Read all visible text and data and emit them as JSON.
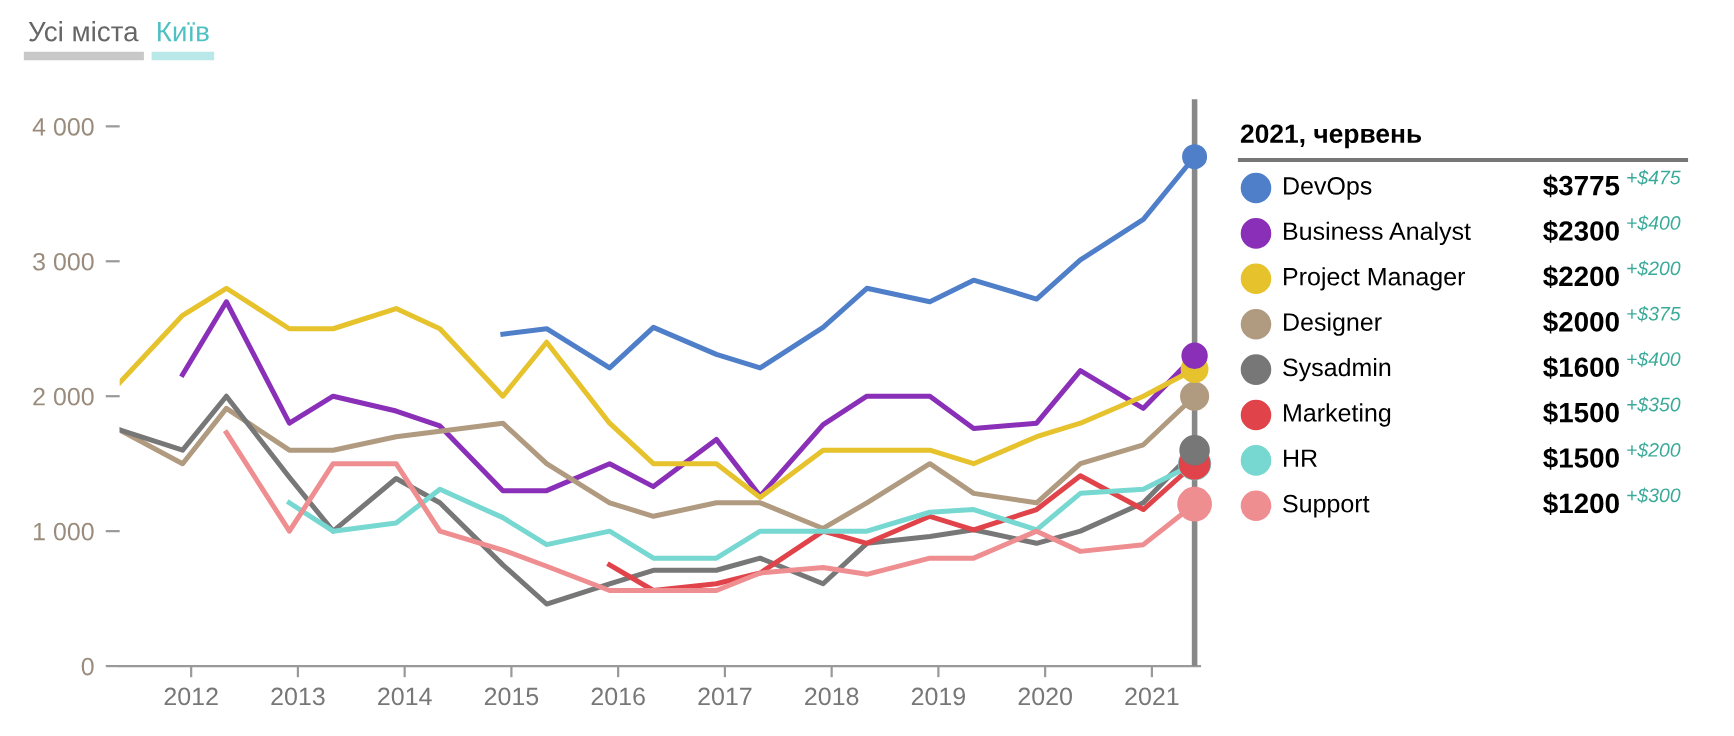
{
  "chart_data": {
    "type": "line",
    "x": [
      2011.33,
      2011.92,
      2012.33,
      2012.92,
      2013.33,
      2013.92,
      2014.33,
      2014.92,
      2015.33,
      2015.92,
      2016.33,
      2016.92,
      2017.33,
      2017.92,
      2018.33,
      2018.92,
      2019.33,
      2019.92,
      2020.33,
      2020.92,
      2021.4
    ],
    "xlim": [
      2011.33,
      2021.45
    ],
    "xticks": [
      2012,
      2013,
      2014,
      2015,
      2016,
      2017,
      2018,
      2019,
      2020,
      2021
    ],
    "ylim": [
      0,
      4200
    ],
    "yticks": [
      {
        "value": 0,
        "label": "0"
      },
      {
        "value": 1000,
        "label": "1 000"
      },
      {
        "value": 2000,
        "label": "2 000"
      },
      {
        "value": 3000,
        "label": "3 000"
      },
      {
        "value": 4000,
        "label": "4 000"
      }
    ],
    "grid": false,
    "legend": "right",
    "legend_title": "2021, червень",
    "line_style": "solid",
    "series": [
      {
        "name": "DevOps",
        "color": "#4f7fc9",
        "values": [
          null,
          null,
          null,
          null,
          null,
          null,
          null,
          2460,
          2500,
          2210,
          2510,
          2310,
          2210,
          2510,
          2800,
          2700,
          2860,
          2720,
          3010,
          3310,
          3775
        ]
      },
      {
        "name": "Business Analyst",
        "color": "#8a2fb8",
        "values": [
          null,
          2160,
          2700,
          1800,
          2000,
          1890,
          1780,
          1300,
          1300,
          1500,
          1330,
          1680,
          1260,
          1790,
          2000,
          2000,
          1760,
          1800,
          2190,
          1910,
          2300
        ]
      },
      {
        "name": "Project Manager",
        "color": "#e6c22d",
        "values": [
          2100,
          2600,
          2800,
          2500,
          2500,
          2650,
          2500,
          2000,
          2400,
          1800,
          1500,
          1500,
          1250,
          1600,
          1600,
          1600,
          1500,
          1700,
          1800,
          2000,
          2200
        ]
      },
      {
        "name": "Designer",
        "color": "#b09a80",
        "values": [
          1750,
          1500,
          1910,
          1600,
          1600,
          1700,
          1740,
          1800,
          1500,
          1210,
          1110,
          1210,
          1210,
          1020,
          1210,
          1500,
          1280,
          1210,
          1500,
          1640,
          2000
        ]
      },
      {
        "name": "Sysadmin",
        "color": "#777777",
        "values": [
          1750,
          1600,
          2000,
          1400,
          1000,
          1390,
          1210,
          750,
          460,
          610,
          710,
          710,
          800,
          610,
          910,
          960,
          1010,
          910,
          1000,
          1210,
          1600
        ]
      },
      {
        "name": "Marketing",
        "color": "#e0434a",
        "values": [
          null,
          null,
          null,
          null,
          null,
          null,
          null,
          null,
          null,
          750,
          560,
          610,
          690,
          1000,
          910,
          1110,
          1010,
          1160,
          1410,
          1160,
          1500
        ]
      },
      {
        "name": "HR",
        "color": "#76d8d0",
        "values": [
          null,
          null,
          null,
          1210,
          1000,
          1060,
          1310,
          1100,
          900,
          1000,
          800,
          800,
          1000,
          1000,
          1000,
          1140,
          1160,
          1010,
          1280,
          1310,
          1500
        ]
      },
      {
        "name": "Support",
        "color": "#ef8e91",
        "values": [
          null,
          null,
          1730,
          1000,
          1500,
          1500,
          1000,
          860,
          740,
          560,
          560,
          560,
          690,
          730,
          680,
          800,
          800,
          1000,
          850,
          900,
          1200
        ]
      }
    ],
    "ref_lines": [
      {
        "axis": "x",
        "value": 2021.4,
        "color": "#888888"
      }
    ],
    "annotations": [
      "Усі міста",
      "Київ",
      "$3775",
      "+$475",
      "$2300",
      "+$400",
      "$2200",
      "+$200",
      "$2000",
      "+$375",
      "$1600",
      "+$400",
      "$1500",
      "+$350",
      "$1500",
      "+$200",
      "$1200",
      "+$300"
    ]
  }
}
